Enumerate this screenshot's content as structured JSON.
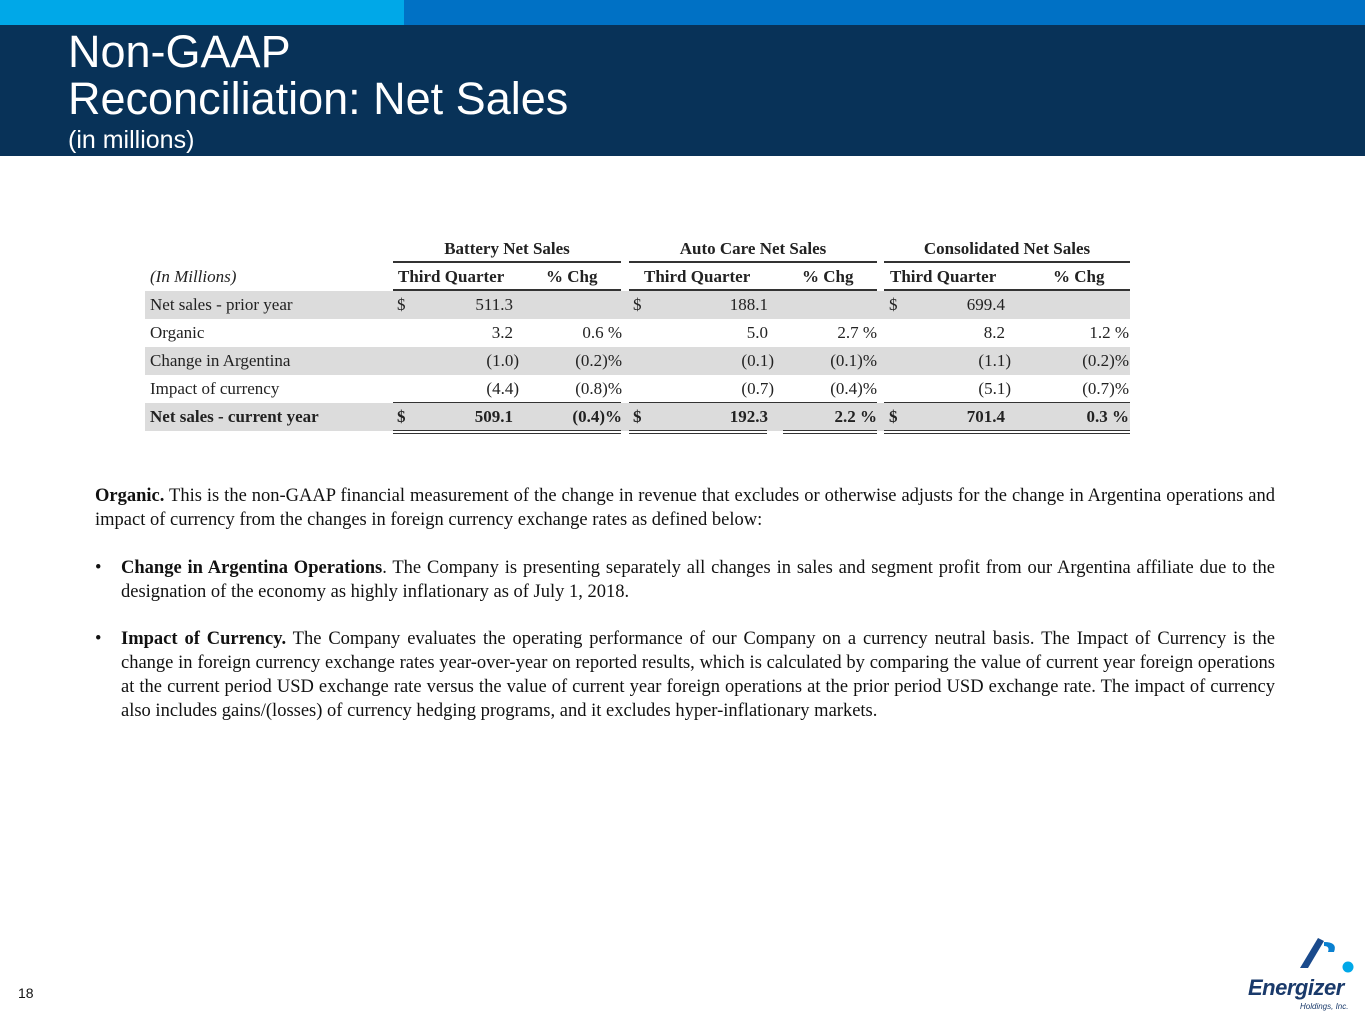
{
  "slide": {
    "title_line1": "Non-GAAP",
    "title_line2": "Reconciliation:  Net Sales",
    "subtitle": "(in millions)",
    "page_number": "18"
  },
  "table": {
    "group_headers": [
      "Battery Net Sales",
      "Auto Care Net Sales",
      "Consolidated Net Sales"
    ],
    "units_label": "(In Millions)",
    "col_headers": [
      "Third Quarter",
      "% Chg",
      "Third Quarter",
      "% Chg",
      "Third Quarter",
      "% Chg"
    ],
    "rows": [
      {
        "label": "Net sales - prior year",
        "b_cur": "$",
        "b_val": "511.3",
        "b_pct": "",
        "a_cur": "$",
        "a_val": "188.1",
        "a_pct": "",
        "c_cur": "$",
        "c_val": "699.4",
        "c_pct": ""
      },
      {
        "label": "Organic",
        "b_cur": "",
        "b_val": "3.2",
        "b_pct": "0.6  %",
        "a_cur": "",
        "a_val": "5.0",
        "a_pct": "2.7  %",
        "c_cur": "",
        "c_val": "8.2",
        "c_pct": "1.2  %"
      },
      {
        "label": "Change in Argentina",
        "b_cur": "",
        "b_val": "(1.0)",
        "b_pct": "(0.2)%",
        "a_cur": "",
        "a_val": "(0.1)",
        "a_pct": "(0.1)%",
        "c_cur": "",
        "c_val": "(1.1)",
        "c_pct": "(0.2)%"
      },
      {
        "label": "Impact of currency",
        "b_cur": "",
        "b_val": "(4.4)",
        "b_pct": "(0.8)%",
        "a_cur": "",
        "a_val": "(0.7)",
        "a_pct": "(0.4)%",
        "c_cur": "",
        "c_val": "(5.1)",
        "c_pct": "(0.7)%"
      },
      {
        "label": "Net sales - current year",
        "b_cur": "$",
        "b_val": "509.1",
        "b_pct": "(0.4)%",
        "a_cur": "$",
        "a_val": "192.3",
        "a_pct": "2.2  %",
        "c_cur": "$",
        "c_val": "701.4",
        "c_pct": "0.3  %"
      }
    ]
  },
  "notes": {
    "organic_term": "Organic.",
    "organic_text": "  This is the non-GAAP financial measurement of the change in revenue that excludes or otherwise adjusts for the change in Argentina operations and impact of currency from the changes in foreign currency exchange rates as defined below:",
    "bullet_symbol": "•",
    "argentina_term": "Change in Argentina Operations",
    "argentina_text": ". The Company is presenting separately all changes in sales and segment profit from our Argentina affiliate due to the designation of the economy as highly inflationary as of July 1, 2018.",
    "currency_term": "Impact of Currency.",
    "currency_text": " The Company evaluates the operating performance of our Company on a currency neutral basis. The Impact of Currency is the change in foreign currency exchange rates year-over-year on reported results, which is calculated by comparing the value of current year foreign operations at the current period USD exchange rate versus the value of current year foreign operations at the prior period USD exchange rate. The impact of currency also includes gains/(losses) of currency hedging programs, and it excludes hyper-inflationary markets."
  },
  "logo": {
    "name": "Energizer",
    "sub": "Holdings, Inc."
  }
}
